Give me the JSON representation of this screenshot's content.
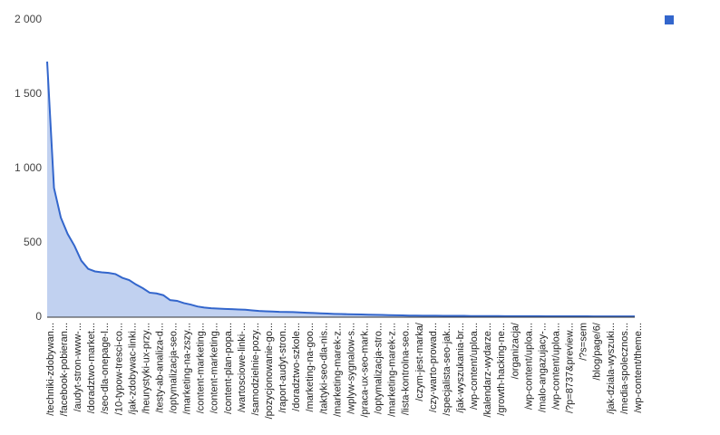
{
  "chart_data": {
    "type": "area",
    "categories": [
      "/techniki-zdobywan...",
      null,
      "/facebook-pobieran...",
      null,
      "/audyt-stron-www-...",
      null,
      "/doradztwo-market...",
      null,
      "/seo-dla-onepage-l...",
      null,
      "/10-typow-tresci-co...",
      null,
      "/jak-zdobywac-linki...",
      null,
      "/heurystyki-ux-przy...",
      null,
      "/testy-ab-analiza-d...",
      null,
      "/optymalizacja-seo...",
      null,
      "/marketing-na-zszy...",
      null,
      "/content-marketing...",
      null,
      "/content-marketing...",
      null,
      "/content-plan-popa...",
      null,
      "/wartosciowe-linki-...",
      null,
      "/samodzielnie-pozy...",
      null,
      "/pozycjonowanie-go...",
      null,
      "/raport-audyt-stron...",
      null,
      "/doradztwo-szkole...",
      null,
      "/marketing-na-goo...",
      null,
      "/taktyki-seo-dla-nis...",
      null,
      "/marketing-marek-z...",
      null,
      "/wplyw-sygnalow-s...",
      null,
      "/praca-ux-seo-mark...",
      null,
      "/optymalizacja-stro...",
      null,
      "/marketing-marek-z...",
      null,
      "/lista-kontrolna-seo...",
      null,
      "/czym-jest-marka/",
      null,
      "/czy-warto-prowad...",
      null,
      "/specjalista-seo-jak...",
      null,
      "/jak-wyszukania-br...",
      null,
      "/wp-content/uploa...",
      null,
      "/kalendarz-wydarze...",
      null,
      "/growth-hacking-ne...",
      null,
      "/organizacja/",
      null,
      "/wp-content/uploa...",
      null,
      "/malo-angazujacy-...",
      null,
      "/wp-content/uploa...",
      null,
      "/?p=8737&preview...",
      null,
      "/?s=sem",
      null,
      "/blog/page/6/",
      null,
      "/jak-dziala-wyszuki...",
      null,
      "/media-spolecznos...",
      null,
      "/wp-content/theme..."
    ],
    "series": [
      {
        "color": "#3366cc",
        "values": [
          1720,
          870,
          670,
          560,
          480,
          380,
          325,
          308,
          302,
          298,
          290,
          265,
          250,
          220,
          195,
          165,
          160,
          148,
          115,
          110,
          95,
          85,
          72,
          65,
          60,
          58,
          56,
          54,
          52,
          50,
          46,
          42,
          40,
          38,
          36,
          35,
          34,
          32,
          30,
          28,
          26,
          24,
          22,
          21,
          20,
          19,
          18,
          17,
          16,
          15,
          14,
          13,
          12,
          11,
          11,
          10,
          10,
          10,
          9,
          9,
          9,
          9,
          8,
          8,
          8,
          8,
          8,
          7,
          7,
          7,
          7,
          7,
          7,
          6,
          6,
          6,
          6,
          6,
          6,
          6,
          5,
          5,
          5,
          5,
          5,
          5,
          5
        ]
      }
    ],
    "ylim": [
      0,
      2000
    ],
    "yticks": [
      0,
      500,
      {
        "value": 1000,
        "label": "1 000"
      },
      {
        "value": 1500,
        "label": "1 500"
      },
      {
        "value": 2000,
        "label": "2 000"
      }
    ],
    "grid": false,
    "legend": "top-right"
  }
}
